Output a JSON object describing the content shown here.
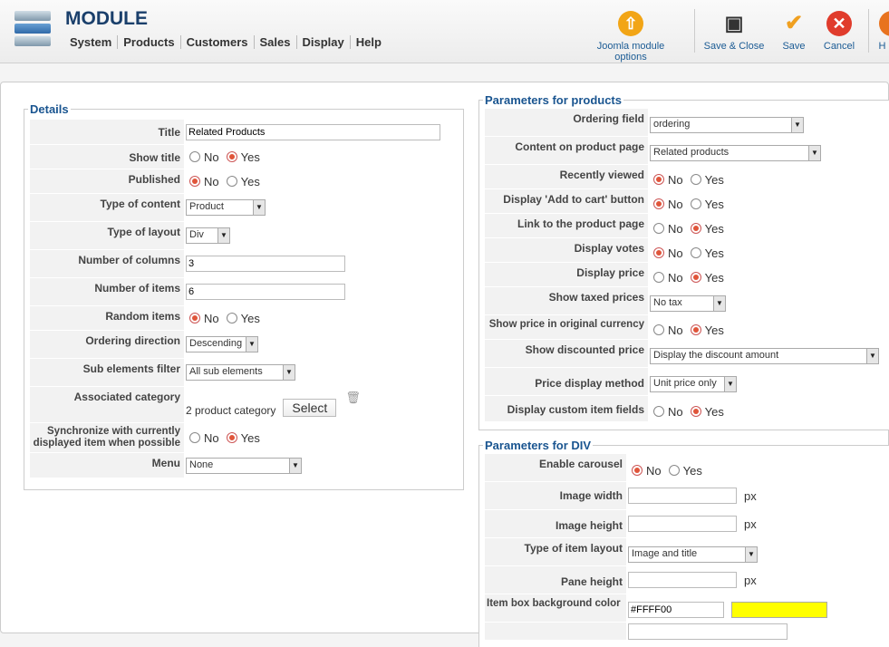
{
  "header": {
    "title": "MODULE",
    "menu": [
      "System",
      "Products",
      "Customers",
      "Sales",
      "Display",
      "Help"
    ]
  },
  "toolbar": {
    "options": "Joomla module options",
    "save_close": "Save & Close",
    "save": "Save",
    "cancel": "Cancel",
    "help": "H"
  },
  "details": {
    "legend": "Details",
    "title_label": "Title",
    "title_value": "Related Products",
    "show_title_label": "Show title",
    "published_label": "Published",
    "type_content_label": "Type of content",
    "type_content_value": "Product",
    "type_layout_label": "Type of layout",
    "type_layout_value": "Div",
    "num_columns_label": "Number of columns",
    "num_columns_value": "3",
    "num_items_label": "Number of items",
    "num_items_value": "6",
    "random_label": "Random items",
    "ordering_dir_label": "Ordering direction",
    "ordering_dir_value": "Descending",
    "sub_filter_label": "Sub elements filter",
    "sub_filter_value": "All sub elements",
    "assoc_cat_label": "Associated category",
    "assoc_cat_value": "2 product category",
    "select_button": "Select",
    "sync_label": "Synchronize with currently displayed item when possible",
    "menu_label": "Menu",
    "menu_value": "None"
  },
  "radio": {
    "no": "No",
    "yes": "Yes"
  },
  "products": {
    "legend": "Parameters for products",
    "ordering_field_label": "Ordering field",
    "ordering_field_value": "ordering",
    "content_page_label": "Content on product page",
    "content_page_value": "Related products",
    "recently_viewed_label": "Recently viewed",
    "add_cart_label": "Display 'Add to cart' button",
    "link_page_label": "Link to the product page",
    "votes_label": "Display votes",
    "price_label": "Display price",
    "taxed_label": "Show taxed prices",
    "taxed_value": "No tax",
    "orig_currency_label": "Show price in original currency",
    "discounted_label": "Show discounted price",
    "discounted_value": "Display the discount amount",
    "price_method_label": "Price display method",
    "price_method_value": "Unit price only",
    "custom_fields_label": "Display custom item fields"
  },
  "div": {
    "legend": "Parameters for DIV",
    "carousel_label": "Enable carousel",
    "img_width_label": "Image width",
    "img_height_label": "Image height",
    "px": "px",
    "item_layout_label": "Type of item layout",
    "item_layout_value": "Image and title",
    "pane_height_label": "Pane height",
    "bg_color_label": "Item box background color",
    "bg_color_value": "#FFFF00"
  },
  "colors": {
    "accent": "#1a5590",
    "swatch": "#FFFF00"
  }
}
